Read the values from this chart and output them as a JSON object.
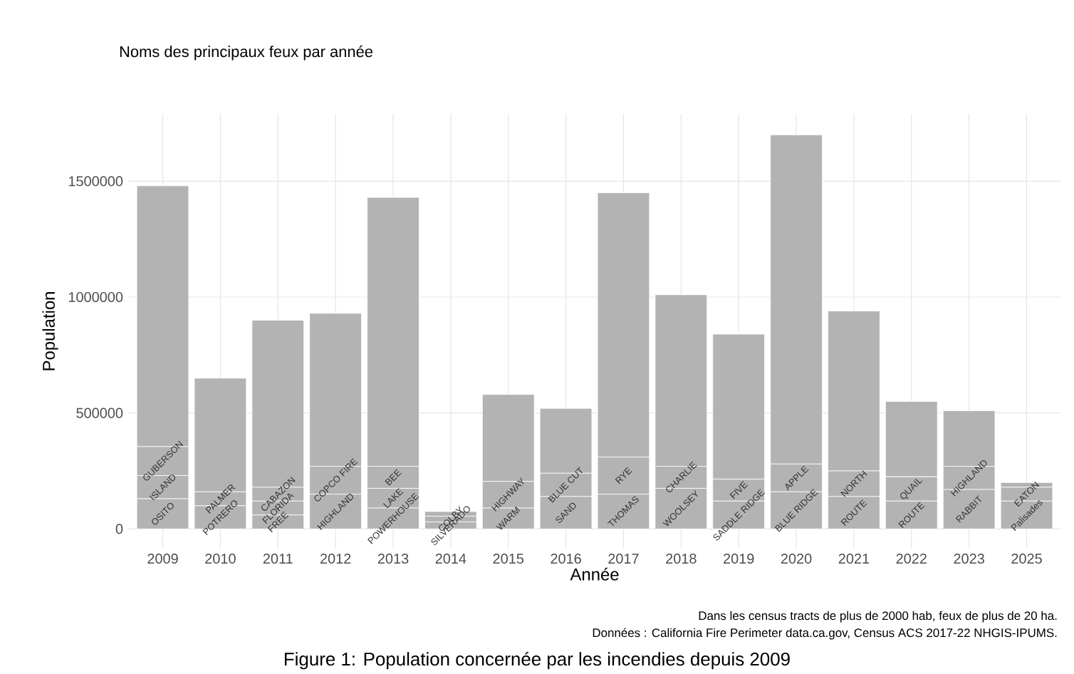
{
  "chart_data": {
    "type": "bar",
    "stacked": true,
    "title": "Noms des principaux feux par année",
    "xlabel": "Année",
    "ylabel": "Population",
    "categories": [
      "2009",
      "2010",
      "2011",
      "2012",
      "2013",
      "2014",
      "2015",
      "2016",
      "2017",
      "2018",
      "2019",
      "2020",
      "2021",
      "2022",
      "2023",
      "2025"
    ],
    "series": [
      {
        "color": "#b3b3b3",
        "values": [
          130000,
          100000,
          60000,
          150000,
          90000,
          30000,
          90000,
          140000,
          150000,
          175000,
          120000,
          160000,
          140000,
          120000,
          170000,
          120000
        ],
        "value_labels": [
          "OSITO",
          "POTRERO",
          "FREE",
          "HIGHLAND",
          "POWERHOUSE",
          "SILVERADO",
          "WARM",
          "SAND",
          "THOMAS",
          "WOOLSEY",
          "SADDLE RIDGE",
          "BLUE RIDGE",
          "ROUTE",
          "ROUTE",
          "RABBIT",
          "Palisades"
        ]
      },
      {
        "color": "#b3b3b3",
        "values": [
          100000,
          60000,
          60000,
          120000,
          85000,
          25000,
          115000,
          100000,
          160000,
          95000,
          95000,
          120000,
          110000,
          105000,
          100000,
          60000
        ],
        "value_labels": [
          "ISLAND",
          "PALMER",
          "FLORIDA",
          "COPCO FIRE",
          "LAKE",
          "COLBY",
          "HIGHWAY",
          "BLUE CUT",
          "RYE",
          "CHARLIE",
          "FIVE",
          "APPLE",
          "NORTH",
          "QUAIL",
          "HIGHLAND",
          "EATON"
        ]
      },
      {
        "color": "#b3b3b3",
        "values": [
          125000,
          0,
          60000,
          0,
          95000,
          0,
          0,
          0,
          0,
          0,
          0,
          0,
          0,
          0,
          0,
          0
        ],
        "value_labels": [
          "GUBERSON",
          null,
          "CABAZON",
          null,
          "BEE",
          null,
          null,
          null,
          null,
          null,
          null,
          null,
          null,
          null,
          null,
          null
        ]
      },
      {
        "color": "#b3b3b3",
        "values": [
          1125000,
          490000,
          720000,
          660000,
          1160000,
          20000,
          375000,
          280000,
          1140000,
          740000,
          625000,
          1420000,
          690000,
          325000,
          240000,
          20000
        ]
      }
    ],
    "ylim": [
      -85000,
      1790000
    ],
    "yticks": [
      0,
      500000,
      1000000,
      1500000
    ],
    "grid": true,
    "annotations": [
      "Dans les census tracts de plus de 2000 hab, feux de plus de 20 ha.",
      "Données : California Fire Perimeter data.ca.gov, Census ACS 2017-22 NHGIS-IPUMS.",
      "Figure 1: Population concernée par les incendies depuis 2009"
    ]
  }
}
